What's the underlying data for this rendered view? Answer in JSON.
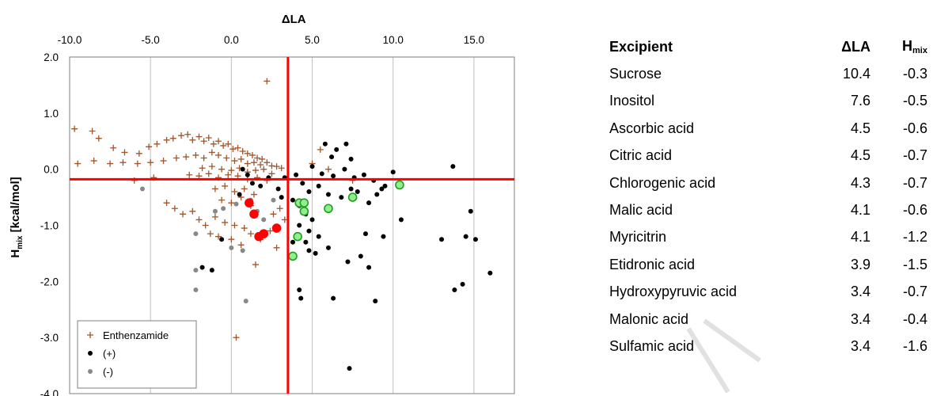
{
  "chart_data": {
    "type": "scatter",
    "title": "",
    "xlabel": "ΔLA",
    "ylabel": "H_mix [kcal/mol]",
    "ylabel_main": "H",
    "ylabel_sub": "mix",
    "ylabel_rest": " [kcal/mol]",
    "xlim": [
      -10,
      17.5
    ],
    "ylim": [
      -4,
      2
    ],
    "x_ticks": [
      "-10.0",
      "-5.0",
      "0.0",
      "5.0",
      "10.0",
      "15.0"
    ],
    "y_ticks": [
      "2.0",
      "1.0",
      "0.0",
      "-1.0",
      "-2.0",
      "-3.0",
      "-4.0"
    ],
    "x_axis_position": "top",
    "grid": "vertical",
    "reference_lines": {
      "x": 3.5,
      "y": -0.18,
      "color": "#ff0000"
    },
    "legend": {
      "position": "bottom-left",
      "entries": [
        "Enthenzamide",
        "(+)",
        "(-)"
      ]
    },
    "series": [
      {
        "name": "Enthenzamide",
        "marker": "plus",
        "color": "#a0562a",
        "points": [
          [
            -9.7,
            0.72
          ],
          [
            -8.6,
            0.68
          ],
          [
            -8.2,
            0.55
          ],
          [
            -7.3,
            0.38
          ],
          [
            -6.6,
            0.3
          ],
          [
            -5.7,
            0.28
          ],
          [
            -5.1,
            0.4
          ],
          [
            -4.6,
            0.45
          ],
          [
            -4.0,
            0.52
          ],
          [
            -3.6,
            0.55
          ],
          [
            -3.1,
            0.6
          ],
          [
            -2.7,
            0.62
          ],
          [
            -2.4,
            0.52
          ],
          [
            -2.0,
            0.58
          ],
          [
            -1.7,
            0.5
          ],
          [
            -1.4,
            0.56
          ],
          [
            -1.1,
            0.45
          ],
          [
            -0.8,
            0.5
          ],
          [
            -0.5,
            0.42
          ],
          [
            -0.2,
            0.45
          ],
          [
            0.1,
            0.36
          ],
          [
            0.4,
            0.38
          ],
          [
            0.7,
            0.32
          ],
          [
            1.0,
            0.28
          ],
          [
            1.3,
            0.25
          ],
          [
            1.6,
            0.2
          ],
          [
            1.9,
            0.18
          ],
          [
            2.2,
            0.12
          ],
          [
            2.5,
            0.06
          ],
          [
            2.8,
            0.05
          ],
          [
            3.1,
            0.02
          ],
          [
            2.2,
            1.57
          ],
          [
            -6.7,
            0.12
          ],
          [
            -7.5,
            0.1
          ],
          [
            -8.5,
            0.15
          ],
          [
            -5.8,
            0.1
          ],
          [
            -5.0,
            0.12
          ],
          [
            -4.2,
            0.15
          ],
          [
            -3.4,
            0.2
          ],
          [
            -2.8,
            0.22
          ],
          [
            -2.2,
            0.25
          ],
          [
            -1.7,
            0.2
          ],
          [
            -1.2,
            0.3
          ],
          [
            -0.8,
            0.25
          ],
          [
            -0.3,
            0.2
          ],
          [
            0.2,
            0.15
          ],
          [
            0.6,
            0.18
          ],
          [
            1.0,
            0.1
          ],
          [
            1.4,
            0.12
          ],
          [
            1.8,
            0.08
          ],
          [
            -1.8,
            0.02
          ],
          [
            -1.2,
            0.05
          ],
          [
            -0.6,
            0.0
          ],
          [
            0.0,
            -0.02
          ],
          [
            0.5,
            0.02
          ],
          [
            1.0,
            -0.05
          ],
          [
            1.5,
            -0.02
          ],
          [
            2.0,
            0.0
          ],
          [
            2.5,
            -0.08
          ],
          [
            -2.6,
            -0.1
          ],
          [
            -2.0,
            -0.12
          ],
          [
            -1.4,
            -0.08
          ],
          [
            -0.8,
            -0.15
          ],
          [
            -0.2,
            -0.1
          ],
          [
            0.4,
            -0.12
          ],
          [
            1.0,
            -0.18
          ],
          [
            1.6,
            -0.15
          ],
          [
            2.2,
            -0.2
          ],
          [
            -1.0,
            -0.35
          ],
          [
            -0.4,
            -0.3
          ],
          [
            0.2,
            -0.4
          ],
          [
            0.8,
            -0.35
          ],
          [
            1.4,
            -0.45
          ],
          [
            -0.6,
            -0.55
          ],
          [
            0.0,
            -0.6
          ],
          [
            0.6,
            -0.5
          ],
          [
            1.2,
            -0.65
          ],
          [
            -4.0,
            -0.6
          ],
          [
            -3.5,
            -0.7
          ],
          [
            -3.0,
            -0.8
          ],
          [
            -2.4,
            -0.75
          ],
          [
            -2.0,
            -0.9
          ],
          [
            -1.6,
            -1.0
          ],
          [
            -1.0,
            -0.85
          ],
          [
            -0.4,
            -0.95
          ],
          [
            0.2,
            -1.0
          ],
          [
            0.8,
            -1.05
          ],
          [
            1.2,
            -1.15
          ],
          [
            1.8,
            -1.25
          ],
          [
            2.4,
            -1.1
          ],
          [
            -0.8,
            -1.2
          ],
          [
            0.0,
            -1.25
          ],
          [
            0.6,
            -1.35
          ],
          [
            -1.3,
            -1.15
          ],
          [
            2.6,
            -0.8
          ],
          [
            3.0,
            -0.7
          ],
          [
            3.3,
            -0.9
          ],
          [
            2.8,
            -1.4
          ],
          [
            1.5,
            -1.7
          ],
          [
            5.0,
            0.1
          ],
          [
            6.0,
            0.0
          ],
          [
            7.5,
            -0.2
          ],
          [
            5.5,
            0.35
          ],
          [
            0.3,
            -3.0
          ],
          [
            -4.8,
            -0.15
          ],
          [
            -6.0,
            -0.2
          ],
          [
            -9.5,
            0.1
          ]
        ]
      },
      {
        "name": "(+)",
        "marker": "dot",
        "color": "#000000",
        "points": [
          [
            5.8,
            0.45
          ],
          [
            6.5,
            0.35
          ],
          [
            7.1,
            0.45
          ],
          [
            6.2,
            0.22
          ],
          [
            7.4,
            0.18
          ],
          [
            5.0,
            0.05
          ],
          [
            5.6,
            -0.08
          ],
          [
            6.3,
            -0.12
          ],
          [
            7.0,
            0.0
          ],
          [
            7.6,
            -0.15
          ],
          [
            8.2,
            -0.1
          ],
          [
            8.8,
            -0.2
          ],
          [
            9.5,
            -0.3
          ],
          [
            10.0,
            -0.05
          ],
          [
            4.0,
            -0.1
          ],
          [
            4.4,
            -0.25
          ],
          [
            4.8,
            -0.4
          ],
          [
            5.4,
            -0.3
          ],
          [
            6.0,
            -0.45
          ],
          [
            6.8,
            -0.5
          ],
          [
            7.4,
            -0.35
          ],
          [
            7.8,
            -0.4
          ],
          [
            8.5,
            -0.6
          ],
          [
            9.0,
            -0.45
          ],
          [
            9.3,
            -0.35
          ],
          [
            3.8,
            -0.55
          ],
          [
            4.2,
            -0.65
          ],
          [
            4.6,
            -0.8
          ],
          [
            5.0,
            -0.9
          ],
          [
            4.2,
            -1.0
          ],
          [
            4.8,
            -1.1
          ],
          [
            5.4,
            -1.2
          ],
          [
            4.6,
            -1.3
          ],
          [
            4.8,
            -1.45
          ],
          [
            5.2,
            -1.5
          ],
          [
            6.0,
            -1.4
          ],
          [
            3.8,
            -1.3
          ],
          [
            7.2,
            -1.65
          ],
          [
            8.0,
            -1.55
          ],
          [
            8.5,
            -1.75
          ],
          [
            8.3,
            -1.15
          ],
          [
            9.4,
            -1.2
          ],
          [
            10.5,
            -0.9
          ],
          [
            4.2,
            -2.15
          ],
          [
            4.3,
            -2.3
          ],
          [
            6.3,
            -2.3
          ],
          [
            8.9,
            -2.35
          ],
          [
            7.3,
            -3.55
          ],
          [
            13.0,
            -1.25
          ],
          [
            14.5,
            -1.2
          ],
          [
            15.1,
            -1.25
          ],
          [
            14.8,
            -0.75
          ],
          [
            16.0,
            -1.85
          ],
          [
            14.3,
            -2.05
          ],
          [
            13.8,
            -2.15
          ],
          [
            13.7,
            0.05
          ],
          [
            0.7,
            0.0
          ],
          [
            1.0,
            -0.1
          ],
          [
            1.3,
            -0.25
          ],
          [
            0.5,
            -0.45
          ],
          [
            1.8,
            -0.3
          ],
          [
            2.3,
            -0.15
          ],
          [
            2.9,
            -0.35
          ],
          [
            -0.6,
            -1.25
          ],
          [
            -1.2,
            -1.8
          ],
          [
            -1.8,
            -1.75
          ],
          [
            3.1,
            -0.5
          ],
          [
            3.3,
            -0.15
          ]
        ]
      },
      {
        "name": "(-)",
        "marker": "dot",
        "color": "#888888",
        "points": [
          [
            -5.5,
            -0.35
          ],
          [
            -1.0,
            -0.75
          ],
          [
            -0.5,
            -0.7
          ],
          [
            -2.2,
            -1.15
          ],
          [
            -2.2,
            -1.8
          ],
          [
            -2.2,
            -2.15
          ],
          [
            0.0,
            -1.4
          ],
          [
            0.7,
            -1.45
          ],
          [
            0.9,
            -2.35
          ],
          [
            1.2,
            -0.55
          ],
          [
            1.6,
            -0.75
          ],
          [
            0.3,
            -0.62
          ],
          [
            2.0,
            -0.9
          ],
          [
            2.6,
            -0.55
          ]
        ]
      },
      {
        "name": "excipients-red",
        "marker": "dot-large",
        "color": "#ff0000",
        "points": [
          [
            1.1,
            -0.6
          ],
          [
            1.4,
            -0.8
          ],
          [
            1.7,
            -1.2
          ],
          [
            2.0,
            -1.15
          ],
          [
            2.8,
            -1.05
          ]
        ]
      },
      {
        "name": "excipients-green",
        "marker": "dot-large-outlined",
        "color": "#90ee90",
        "edge": "#1e9e1e",
        "points": [
          [
            4.2,
            -0.6
          ],
          [
            4.5,
            -0.6
          ],
          [
            4.5,
            -0.75
          ],
          [
            6.0,
            -0.7
          ],
          [
            7.5,
            -0.5
          ],
          [
            10.4,
            -0.28
          ],
          [
            4.1,
            -1.2
          ],
          [
            3.8,
            -1.55
          ]
        ]
      }
    ]
  },
  "table": {
    "header": {
      "name": "Excipient",
      "dla": "ΔLA",
      "hmix_main": "H",
      "hmix_sub": "mix"
    },
    "rows": [
      {
        "name": "Sucrose",
        "dla": "10.4",
        "hmix": "-0.3"
      },
      {
        "name": "Inositol",
        "dla": "7.6",
        "hmix": "-0.5"
      },
      {
        "name": "Ascorbic acid",
        "dla": "4.5",
        "hmix": "-0.6"
      },
      {
        "name": "Citric acid",
        "dla": "4.5",
        "hmix": "-0.7"
      },
      {
        "name": "Chlorogenic acid",
        "dla": "4.3",
        "hmix": "-0.7"
      },
      {
        "name": "Malic acid",
        "dla": "4.1",
        "hmix": "-0.6"
      },
      {
        "name": "Myricitrin",
        "dla": "4.1",
        "hmix": "-1.2"
      },
      {
        "name": "Etidronic acid",
        "dla": "3.9",
        "hmix": "-1.5"
      },
      {
        "name": "Hydroxypyruvic acid",
        "dla": "3.4",
        "hmix": "-0.7"
      },
      {
        "name": "Malonic acid",
        "dla": "3.4",
        "hmix": "-0.4"
      },
      {
        "name": "Sulfamic acid",
        "dla": "3.4",
        "hmix": "-1.6"
      }
    ]
  }
}
